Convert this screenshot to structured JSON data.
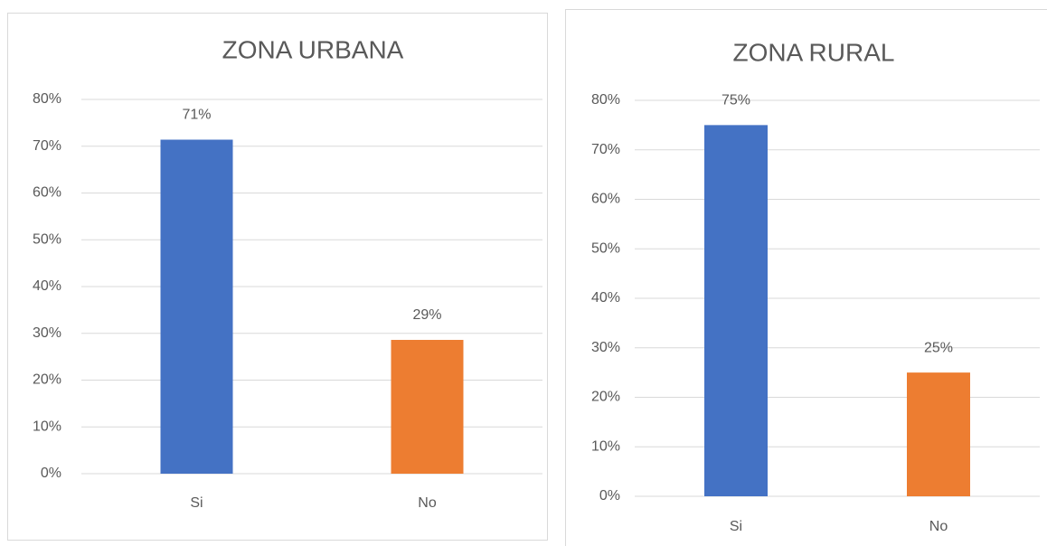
{
  "chart_data": [
    {
      "type": "bar",
      "title": "ZONA URBANA",
      "categories": [
        "Si",
        "No"
      ],
      "values": [
        71.4,
        28.6
      ],
      "value_labels": [
        "71%",
        "29%"
      ],
      "colors": [
        "#4472c4",
        "#ed7d31"
      ],
      "ylim": [
        0,
        80
      ],
      "yticks": [
        {
          "value": 0,
          "label": "0%"
        },
        {
          "value": 10,
          "label": "10%"
        },
        {
          "value": 20,
          "label": "20%"
        },
        {
          "value": 30,
          "label": "30%"
        },
        {
          "value": 40,
          "label": "40%"
        },
        {
          "value": 50,
          "label": "50%"
        },
        {
          "value": 60,
          "label": "60%"
        },
        {
          "value": 70,
          "label": "70%"
        },
        {
          "value": 80,
          "label": "80%"
        }
      ],
      "grid": true
    },
    {
      "type": "bar",
      "title": "ZONA RURAL",
      "categories": [
        "Si",
        "No"
      ],
      "values": [
        75,
        25
      ],
      "value_labels": [
        "75%",
        "25%"
      ],
      "colors": [
        "#4472c4",
        "#ed7d31"
      ],
      "ylim": [
        0,
        80
      ],
      "yticks": [
        {
          "value": 0,
          "label": "0%"
        },
        {
          "value": 10,
          "label": "10%"
        },
        {
          "value": 20,
          "label": "20%"
        },
        {
          "value": 30,
          "label": "30%"
        },
        {
          "value": 40,
          "label": "40%"
        },
        {
          "value": 50,
          "label": "50%"
        },
        {
          "value": 60,
          "label": "60%"
        },
        {
          "value": 70,
          "label": "70%"
        },
        {
          "value": 80,
          "label": "80%"
        }
      ],
      "grid": true
    }
  ]
}
